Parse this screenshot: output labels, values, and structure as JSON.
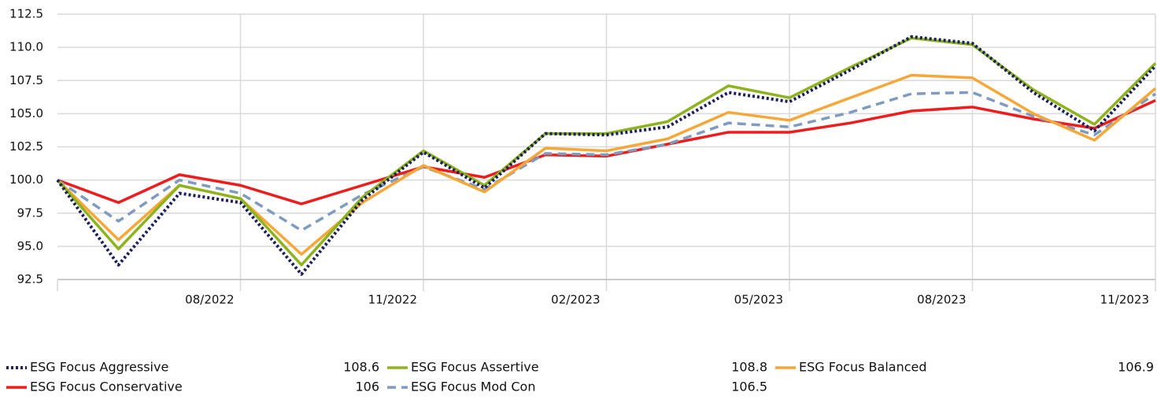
{
  "chart_data": {
    "type": "line",
    "categories": [
      null,
      null,
      null,
      "08/2022",
      null,
      null,
      "11/2022",
      null,
      null,
      "02/2023",
      null,
      null,
      "05/2023",
      null,
      null,
      "08/2023",
      null,
      null,
      "11/2023"
    ],
    "ylim": [
      92.5,
      112.5
    ],
    "yticks": [
      92.5,
      {
        "value": 95,
        "label": "95.0"
      },
      97.5,
      {
        "value": 100,
        "label": "100.0"
      },
      102.5,
      {
        "value": 105,
        "label": "105.0"
      },
      107.5,
      {
        "value": 110,
        "label": "110.0"
      },
      112.5
    ],
    "grid": true,
    "series": [
      {
        "name": "ESG Focus Aggressive",
        "color": "#1b1f5e",
        "line_style": "dotted",
        "legend_value": 108.6,
        "values": [
          100,
          93.6,
          99.0,
          98.3,
          92.9,
          98.5,
          102.1,
          99.4,
          103.5,
          103.4,
          104.0,
          106.6,
          105.9,
          108.3,
          110.8,
          110.3,
          106.6,
          103.7,
          108.6
        ]
      },
      {
        "name": "ESG Focus Assertive",
        "color": "#8db31e",
        "line_style": "solid",
        "legend_value": 108.8,
        "values": [
          100,
          94.8,
          99.6,
          98.6,
          93.6,
          98.7,
          102.2,
          99.6,
          103.5,
          103.5,
          104.4,
          107.1,
          106.2,
          108.5,
          110.7,
          110.2,
          106.8,
          104.2,
          108.8
        ]
      },
      {
        "name": "ESG Focus Balanced",
        "color": "#f7a738",
        "line_style": "solid",
        "legend_value": 106.9,
        "values": [
          100,
          95.5,
          99.6,
          98.6,
          94.4,
          98.3,
          101.1,
          99.1,
          102.4,
          102.2,
          103.1,
          105.1,
          104.5,
          106.2,
          107.9,
          107.7,
          105.0,
          103.0,
          106.9
        ]
      },
      {
        "name": "ESG Focus Conservative",
        "color": "#ee1c1c",
        "line_style": "solid",
        "legend_value": 106.0,
        "values": [
          100,
          98.3,
          100.4,
          99.6,
          98.2,
          99.6,
          101.0,
          100.2,
          101.9,
          101.8,
          102.7,
          103.6,
          103.6,
          104.3,
          105.2,
          105.5,
          104.6,
          103.9,
          106.0
        ]
      },
      {
        "name": "ESG Focus Mod Con",
        "color": "#7f9cc0",
        "line_style": "dashed",
        "legend_value": 106.5,
        "values": [
          100,
          96.9,
          100.0,
          99.0,
          96.2,
          98.9,
          101.0,
          99.3,
          102.0,
          101.9,
          102.7,
          104.3,
          104.0,
          105.1,
          106.5,
          106.6,
          104.8,
          103.4,
          106.5
        ]
      }
    ]
  }
}
